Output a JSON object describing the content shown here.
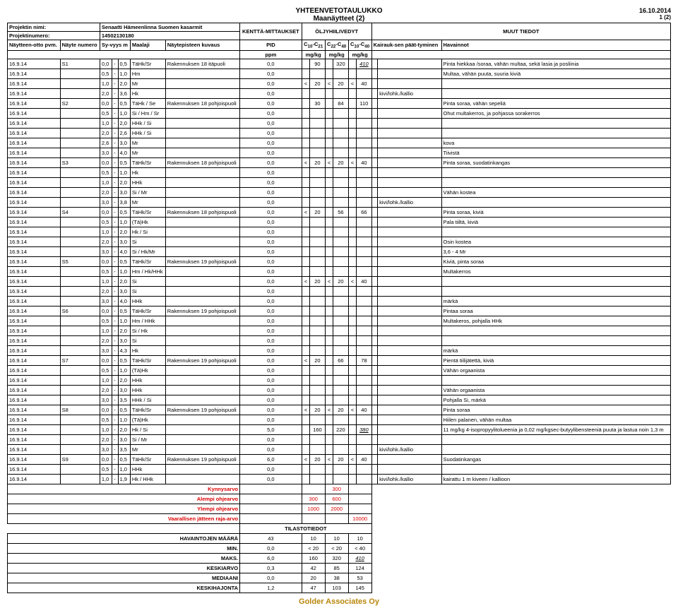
{
  "header": {
    "title1": "YHTEENVETOTAULUKKO",
    "title2": "Maanäytteet (2)",
    "date": "16.10.2014",
    "page": "1 (2)"
  },
  "project": {
    "name_label": "Projektin nimi:",
    "name_value": "Senaatti Hämeenlinna Suomen kasarmit",
    "num_label": "Projektinumero:",
    "num_value": "14502130180"
  },
  "colgroups": {
    "kentta": "KENTTÄ-MITTAUKSET",
    "oljy": "ÖLJYHIILIVEDYT",
    "muut": "MUUT TIEDOT"
  },
  "cols": {
    "c1": "Näytteen-otto pvm.",
    "c2": "Näyte numero",
    "c3": "Sy-vyys m",
    "c4": "Maalaji",
    "c5": "Näytepisteen kuvaus",
    "c6": "PID",
    "c7": "C10-C21",
    "c8": "C22-C40",
    "c9": "C10-C40",
    "c10": "Kairauk-sen päät-tyminen",
    "c11": "Havainnot",
    "u_ppm": "ppm",
    "u_mgkg": "mg/kg"
  },
  "rows": [
    [
      "16.9.14",
      "S1",
      "0,0",
      "-",
      "0,5",
      "TäHk/Sr",
      "Rakennuksen 18 itäpuoli",
      "0,0",
      "",
      "90",
      "",
      "320",
      "",
      "410",
      "",
      "",
      "Pinta hiekkaa /soraa, vähän multaa, sekä lasia ja posliinia"
    ],
    [
      "16.9.14",
      "",
      "0,5",
      "-",
      "1,0",
      "Hm",
      "",
      "0,0",
      "",
      "",
      "",
      "",
      "",
      "",
      "",
      "",
      "Multaa, vähän puuta, suuria kiviä"
    ],
    [
      "16.9.14",
      "",
      "1,0",
      "-",
      "2,0",
      "Mr",
      "",
      "0,0",
      "<",
      "20",
      "<",
      "20",
      "<",
      "40",
      "",
      "",
      ""
    ],
    [
      "16.9.14",
      "",
      "2,0",
      "-",
      "3,6",
      "Hk",
      "",
      "0,0",
      "",
      "",
      "",
      "",
      "",
      "",
      "",
      "kivi/lohk./kallio",
      ""
    ],
    [
      "16.9.14",
      "S2",
      "0,0",
      "-",
      "0,5",
      "TäHk / Se",
      "Rakennuksen 18 pohjoispuoli",
      "0,0",
      "",
      "30",
      "",
      "84",
      "",
      "110",
      "",
      "",
      "Pinta soraa, vähän sepeliä"
    ],
    [
      "16.9.14",
      "",
      "0,5",
      "-",
      "1,0",
      "Si / Hm / Sr",
      "",
      "0,0",
      "",
      "",
      "",
      "",
      "",
      "",
      "",
      "",
      "Ohut multakerros, ja pohjassa sorakerros"
    ],
    [
      "16.9.14",
      "",
      "1,0",
      "-",
      "2,0",
      "HHk / Si",
      "",
      "0,0",
      "",
      "",
      "",
      "",
      "",
      "",
      "",
      "",
      ""
    ],
    [
      "16.9.14",
      "",
      "2,0",
      "-",
      "2,6",
      "HHk / Si",
      "",
      "0,0",
      "",
      "",
      "",
      "",
      "",
      "",
      "",
      "",
      ""
    ],
    [
      "16.9.14",
      "",
      "2,6",
      "-",
      "3,0",
      "Mr",
      "",
      "0,0",
      "",
      "",
      "",
      "",
      "",
      "",
      "",
      "",
      "kova"
    ],
    [
      "16.9.14",
      "",
      "3,0",
      "-",
      "4,0",
      "Mr",
      "",
      "0,0",
      "",
      "",
      "",
      "",
      "",
      "",
      "",
      "",
      "Tiivistä"
    ],
    [
      "16.9.14",
      "S3",
      "0,0",
      "-",
      "0,5",
      "TäHk/Sr",
      "Rakennuksen 18 pohjoispuoli",
      "0,0",
      "<",
      "20",
      "<",
      "20",
      "<",
      "40",
      "",
      "",
      "Pinta soraa, suodatinkangas"
    ],
    [
      "16.9.14",
      "",
      "0,5",
      "-",
      "1,0",
      "Hk",
      "",
      "0,0",
      "",
      "",
      "",
      "",
      "",
      "",
      "",
      "",
      ""
    ],
    [
      "16.9.14",
      "",
      "1,0",
      "-",
      "2,0",
      "HHk",
      "",
      "0,0",
      "",
      "",
      "",
      "",
      "",
      "",
      "",
      "",
      ""
    ],
    [
      "16.9.14",
      "",
      "2,0",
      "-",
      "3,0",
      "Si / Mr",
      "",
      "0,0",
      "",
      "",
      "",
      "",
      "",
      "",
      "",
      "",
      "Vähän kostea"
    ],
    [
      "16.9.14",
      "",
      "3,0",
      "-",
      "3,8",
      "Mr",
      "",
      "0,0",
      "",
      "",
      "",
      "",
      "",
      "",
      "",
      "kivi/lohk./kallio",
      ""
    ],
    [
      "16.9.14",
      "S4",
      "0,0",
      "-",
      "0,5",
      "TäHk/Sr",
      "Rakennuksen 18 pohjoispuoli",
      "0,0",
      "<",
      "20",
      "",
      "56",
      "",
      "66",
      "",
      "",
      "Pinta soraa, kiviä"
    ],
    [
      "16.9.14",
      "",
      "0,5",
      "-",
      "1,0",
      "(Tä)Hk",
      "",
      "0,0",
      "",
      "",
      "",
      "",
      "",
      "",
      "",
      "",
      "Pala tiiltä, kiviä"
    ],
    [
      "16.9.14",
      "",
      "1,0",
      "-",
      "2,0",
      "Hk / Si",
      "",
      "0,0",
      "",
      "",
      "",
      "",
      "",
      "",
      "",
      "",
      ""
    ],
    [
      "16.9.14",
      "",
      "2,0",
      "-",
      "3,0",
      "Si",
      "",
      "0,0",
      "",
      "",
      "",
      "",
      "",
      "",
      "",
      "",
      "Osin kostea"
    ],
    [
      "16.9.14",
      "",
      "3,0",
      "-",
      "4,0",
      "Si / Hk/Mr",
      "",
      "0,0",
      "",
      "",
      "",
      "",
      "",
      "",
      "",
      "",
      "3,6 - 4 Mr"
    ],
    [
      "16.9.14",
      "S5",
      "0,0",
      "-",
      "0,5",
      "TäHk/Sr",
      "Rakennuksen 19 pohjoispuoli",
      "0,0",
      "",
      "",
      "",
      "",
      "",
      "",
      "",
      "",
      "Kiviä, pinta soraa"
    ],
    [
      "16.9.14",
      "",
      "0,5",
      "-",
      "1,0",
      "Hm / Hk/HHk",
      "",
      "0,0",
      "",
      "",
      "",
      "",
      "",
      "",
      "",
      "",
      "Multakerros"
    ],
    [
      "16.9.14",
      "",
      "1,0",
      "-",
      "2,0",
      "Si",
      "",
      "0,0",
      "<",
      "20",
      "<",
      "20",
      "<",
      "40",
      "",
      "",
      ""
    ],
    [
      "16.9.14",
      "",
      "2,0",
      "-",
      "3,0",
      "Si",
      "",
      "0,0",
      "",
      "",
      "",
      "",
      "",
      "",
      "",
      "",
      ""
    ],
    [
      "16.9.14",
      "",
      "3,0",
      "-",
      "4,0",
      "HHk",
      "",
      "0,0",
      "",
      "",
      "",
      "",
      "",
      "",
      "",
      "",
      "märkä"
    ],
    [
      "16.9.14",
      "S6",
      "0,0",
      "-",
      "0,5",
      "TäHk/Sr",
      "Rakennuksen 19 pohjoispuoli",
      "0,0",
      "",
      "",
      "",
      "",
      "",
      "",
      "",
      "",
      "Pintaa soraa"
    ],
    [
      "16.9.14",
      "",
      "0,5",
      "-",
      "1,0",
      "Hm / HHk",
      "",
      "0,0",
      "",
      "",
      "",
      "",
      "",
      "",
      "",
      "",
      "Multakeros, pohjalla HHk"
    ],
    [
      "16.9.14",
      "",
      "1,0",
      "-",
      "2,0",
      "Si / Hk",
      "",
      "0,0",
      "",
      "",
      "",
      "",
      "",
      "",
      "",
      "",
      ""
    ],
    [
      "16.9.14",
      "",
      "2,0",
      "-",
      "3,0",
      "Si",
      "",
      "0,0",
      "",
      "",
      "",
      "",
      "",
      "",
      "",
      "",
      ""
    ],
    [
      "16.9.14",
      "",
      "3,0",
      "-",
      "4,3",
      "Hk",
      "",
      "0,0",
      "",
      "",
      "",
      "",
      "",
      "",
      "",
      "",
      "märkä"
    ],
    [
      "16.9.14",
      "S7",
      "0,0",
      "-",
      "0,5",
      "TäHk/Sr",
      "Rakennuksen 19 pohjoispuoli",
      "0,0",
      "<",
      "20",
      "",
      "66",
      "",
      "78",
      "",
      "",
      "Pientä tiilijätettä, kiviä"
    ],
    [
      "16.9.14",
      "",
      "0,5",
      "-",
      "1,0",
      "(Tä)Hk",
      "",
      "0,0",
      "",
      "",
      "",
      "",
      "",
      "",
      "",
      "",
      "Vähän orgaanista"
    ],
    [
      "16.9.14",
      "",
      "1,0",
      "-",
      "2,0",
      "HHk",
      "",
      "0,0",
      "",
      "",
      "",
      "",
      "",
      "",
      "",
      "",
      ""
    ],
    [
      "16.9.14",
      "",
      "2,0",
      "-",
      "3,0",
      "HHk",
      "",
      "0,0",
      "",
      "",
      "",
      "",
      "",
      "",
      "",
      "",
      "Vähän orgaanista"
    ],
    [
      "16.9.14",
      "",
      "3,0",
      "-",
      "3,5",
      "HHk / Si",
      "",
      "0,0",
      "",
      "",
      "",
      "",
      "",
      "",
      "",
      "",
      "Pohjalla Si, märkä"
    ],
    [
      "16.9.14",
      "S8",
      "0,0",
      "-",
      "0,5",
      "TäHk/Sr",
      "Rakennuksen 19 pohjoispuoli",
      "0,0",
      "<",
      "20",
      "<",
      "20",
      "<",
      "40",
      "",
      "",
      "Pinta soraa"
    ],
    [
      "16.9.14",
      "",
      "0,5",
      "-",
      "1,0",
      "(Tä)Hk",
      "",
      "0,0",
      "",
      "",
      "",
      "",
      "",
      "",
      "",
      "",
      "Hiilen palanen, vähän multaa"
    ],
    [
      "16.9.14",
      "",
      "1,0",
      "-",
      "2,0",
      "Hk / Si",
      "",
      "5,0",
      "",
      "160",
      "",
      "220",
      "",
      "380",
      "",
      "",
      "11 mg/kg 4-isopropyylitolueenia ja 0,02 mg/kgsec-butyylibensteeniä puuta ja lastua noin 1,3 m"
    ],
    [
      "16.9.14",
      "",
      "2,0",
      "-",
      "3,0",
      "Si / Mr",
      "",
      "0,0",
      "",
      "",
      "",
      "",
      "",
      "",
      "",
      "",
      ""
    ],
    [
      "16.9.14",
      "",
      "3,0",
      "-",
      "3,5",
      "Mr",
      "",
      "0,0",
      "",
      "",
      "",
      "",
      "",
      "",
      "",
      "kivi/lohk./kallio",
      ""
    ],
    [
      "16.9.14",
      "S9",
      "0,0",
      "-",
      "0,5",
      "TäHk/Sr",
      "Rakennuksen 19 pohjoispuoli",
      "6,0",
      "<",
      "20",
      "<",
      "20",
      "<",
      "40",
      "",
      "",
      "Suodatinkangas"
    ],
    [
      "16.9.14",
      "",
      "0,5",
      "-",
      "1,0",
      "HHk",
      "",
      "0,0",
      "",
      "",
      "",
      "",
      "",
      "",
      "",
      "",
      ""
    ],
    [
      "16.9.14",
      "",
      "1,0",
      "-",
      "1,9",
      "Hk / HHk",
      "",
      "0,0",
      "",
      "",
      "",
      "",
      "",
      "",
      "",
      "kivi/lohk./kallio",
      "kairattu 1 m kiveen / kallioon"
    ]
  ],
  "limits": [
    [
      "Kynnysarvo",
      "",
      "",
      "300",
      ""
    ],
    [
      "Alempi ohjearvo",
      "",
      "300",
      "600",
      ""
    ],
    [
      "Ylempi ohjearvo",
      "",
      "1000",
      "2000",
      ""
    ],
    [
      "Vaarallisen jätteen raja-arvo",
      "",
      "",
      "",
      "10000"
    ]
  ],
  "stats_title": "TILASTOTIEDOT",
  "stats": [
    [
      "HAVAINTOJEN MÄÄRÄ",
      "43",
      "10",
      "10",
      "10"
    ],
    [
      "MIN.",
      "0,0",
      "< 20",
      "< 20",
      "< 40"
    ],
    [
      "MAKS.",
      "6,0",
      "160",
      "320",
      "410"
    ],
    [
      "KESKIARVO",
      "0,3",
      "42",
      "85",
      "124"
    ],
    [
      "MEDIAANI",
      "0,0",
      "20",
      "38",
      "53"
    ],
    [
      "KESKIHAJONTA",
      "1,2",
      "47",
      "103",
      "145"
    ]
  ],
  "footer": "Golder Associates Oy"
}
